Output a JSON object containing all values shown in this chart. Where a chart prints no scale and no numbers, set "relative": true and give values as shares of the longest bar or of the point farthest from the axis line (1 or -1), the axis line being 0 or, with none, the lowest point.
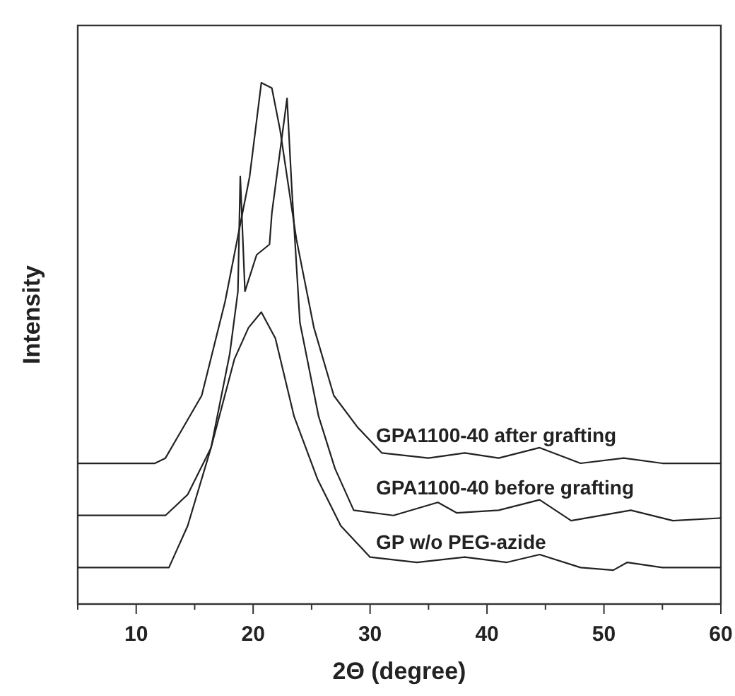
{
  "chart_data": {
    "type": "line",
    "relative": true,
    "xlabel": "2Θ (degree)",
    "ylabel": "Intensity",
    "xlim": [
      5,
      60
    ],
    "xticks": [
      {
        "value": 5,
        "label": null
      },
      10,
      {
        "value": 15,
        "label": null
      },
      20,
      {
        "value": 25,
        "label": null
      },
      30,
      {
        "value": 35,
        "label": null
      },
      40,
      {
        "value": 45,
        "label": null
      },
      50,
      {
        "value": 55,
        "label": null
      },
      60
    ],
    "grid": false,
    "marker": "none",
    "line_style": "solid",
    "series": [
      {
        "name": "GPA1100-40 after grafting",
        "color": "#222222",
        "x": [
          5,
          8,
          11.6,
          12.5,
          15.6,
          17.6,
          19.7,
          20.7,
          21.6,
          22.3,
          23.7,
          25.2,
          26.9,
          28.9,
          31,
          35,
          38.1,
          41,
          44.5,
          48,
          51.7,
          55,
          60
        ],
        "values": [
          0.27,
          0.27,
          0.27,
          0.28,
          0.4,
          0.58,
          0.82,
          1.0,
          0.99,
          0.91,
          0.7,
          0.53,
          0.4,
          0.34,
          0.29,
          0.28,
          0.29,
          0.28,
          0.3,
          0.27,
          0.28,
          0.27,
          0.27
        ]
      },
      {
        "name": "GPA1100-40 before grafting",
        "color": "#222222",
        "x": [
          5,
          8,
          12.5,
          14.4,
          16.4,
          18,
          18.7,
          18.9,
          19.3,
          20.3,
          21.4,
          21.6,
          22.9,
          23.3,
          24,
          25.6,
          27,
          28.6,
          32,
          35.8,
          37.4,
          41,
          44.5,
          47.2,
          52.3,
          55.9,
          60
        ],
        "values": [
          0.17,
          0.17,
          0.17,
          0.21,
          0.3,
          0.48,
          0.6,
          0.82,
          0.6,
          0.67,
          0.69,
          0.75,
          0.97,
          0.8,
          0.54,
          0.36,
          0.26,
          0.18,
          0.17,
          0.195,
          0.175,
          0.18,
          0.2,
          0.16,
          0.18,
          0.16,
          0.165
        ]
      },
      {
        "name": "GP w/o PEG-azide",
        "color": "#222222",
        "x": [
          5,
          8,
          12.8,
          14.4,
          16.4,
          18.4,
          19.6,
          20.7,
          21.9,
          23.5,
          25.5,
          27.5,
          30,
          34,
          38.1,
          41.7,
          44.5,
          48,
          50.8,
          52,
          55,
          60
        ],
        "values": [
          0.07,
          0.07,
          0.07,
          0.15,
          0.3,
          0.47,
          0.53,
          0.56,
          0.51,
          0.36,
          0.24,
          0.15,
          0.09,
          0.08,
          0.09,
          0.08,
          0.095,
          0.07,
          0.065,
          0.08,
          0.07,
          0.07
        ]
      }
    ]
  }
}
